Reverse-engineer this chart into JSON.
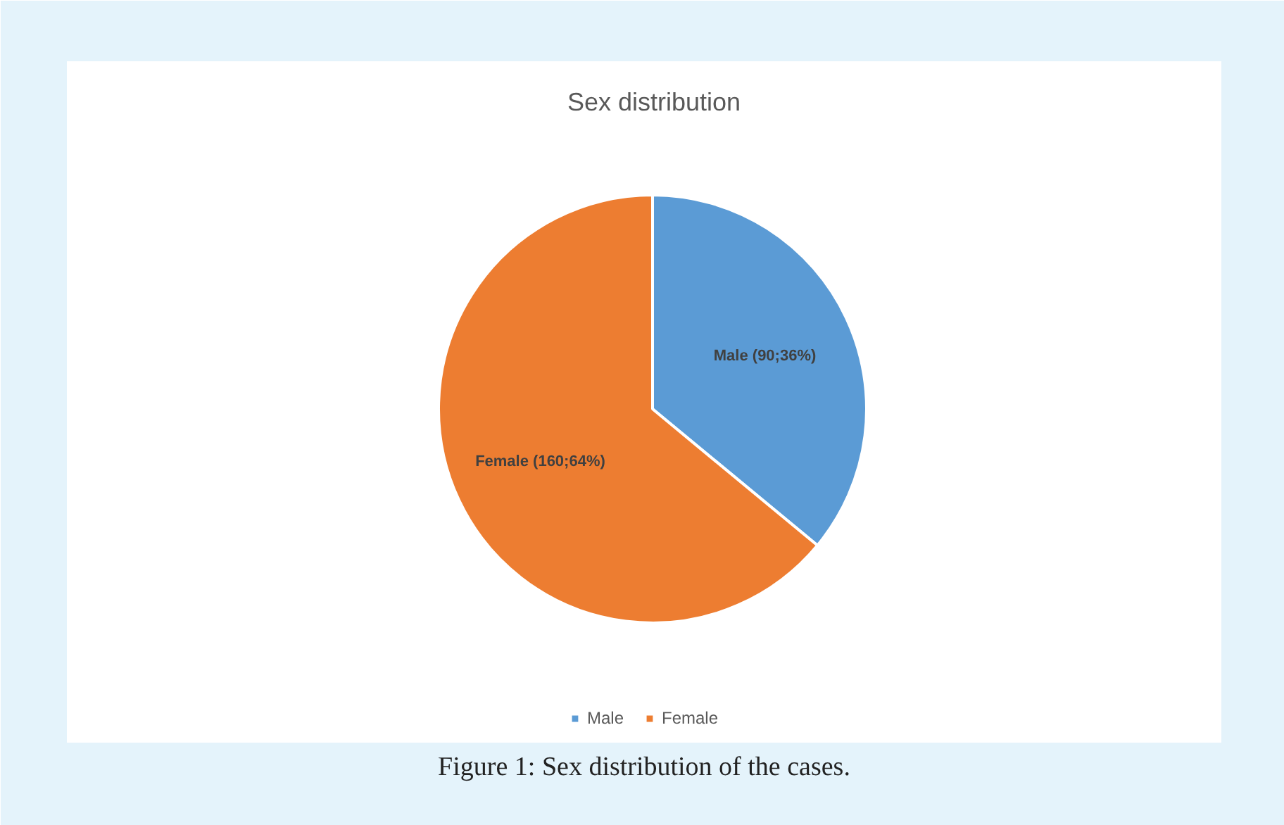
{
  "chart_data": {
    "type": "pie",
    "title": "Sex distribution",
    "categories": [
      "Male",
      "Female"
    ],
    "values": [
      90,
      160
    ],
    "colors": [
      "#5b9bd5",
      "#ed7d31"
    ],
    "value_labels": [
      "Male (90;36%)",
      "Female (160;64%)"
    ],
    "legend": "bottom",
    "annotations": [
      "Figure 1: Sex distribution of the cases."
    ]
  }
}
